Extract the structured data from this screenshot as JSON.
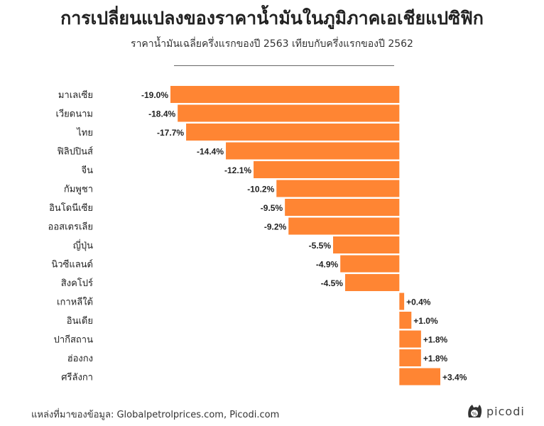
{
  "title": "การเปลี่ยนแปลงของราคาน้ำมันในภูมิภาคเอเชียแปซิฟิก",
  "subtitle": "ราคาน้ำมันเฉลี่ยครึ่งแรกของปี 2563 เทียบกับครึ่งแรกของปี 2562",
  "footer": {
    "source": "แหล่งที่มาของข้อมูล: Globalpetrolprices.com, Picodi.com",
    "brand": "picodi",
    "logo_icon": "picodi-cat-icon"
  },
  "colors": {
    "bar": "#FF8533",
    "text": "#222222"
  },
  "chart_data": {
    "type": "bar",
    "orientation": "horizontal",
    "title": "การเปลี่ยนแปลงของราคาน้ำมันในภูมิภาคเอเชียแปซิฟิก",
    "subtitle": "ราคาน้ำมันเฉลี่ยครึ่งแรกของปี 2563 เทียบกับครึ่งแรกของปี 2562",
    "categories": [
      "มาเลเซีย",
      "เวียดนาม",
      "ไทย",
      "ฟิลิปปินส์",
      "จีน",
      "กัมพูชา",
      "อินโดนีเซีย",
      "ออสเตรเลีย",
      "ญี่ปุ่น",
      "นิวซีแลนด์",
      "สิงคโปร์",
      "เกาหลีใต้",
      "อินเดีย",
      "ปากีสถาน",
      "ฮ่องกง",
      "ศรีลังกา"
    ],
    "values": [
      -19.0,
      -18.4,
      -17.7,
      -14.4,
      -12.1,
      -10.2,
      -9.5,
      -9.2,
      -5.5,
      -4.9,
      -4.5,
      0.4,
      1.0,
      1.8,
      1.8,
      3.4
    ],
    "value_labels": [
      "-19.0%",
      "-18.4%",
      "-17.7%",
      "-14.4%",
      "-12.1%",
      "-10.2%",
      "-9.5%",
      "-9.2%",
      "-5.5%",
      "-4.9%",
      "-4.5%",
      "+0.4%",
      "+1.0%",
      "+1.8%",
      "+1.8%",
      "+3.4%"
    ],
    "xlim": [
      -19.0,
      3.4
    ],
    "grid": false,
    "legend": "none"
  }
}
